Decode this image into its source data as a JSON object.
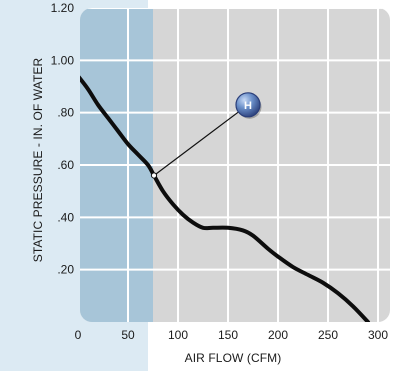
{
  "chart_data": {
    "type": "line",
    "title": "",
    "xlabel": "AIR FLOW (CFM)",
    "ylabel": "STATIC PRESSURE - IN. OF WATER",
    "xlim": [
      0,
      300
    ],
    "ylim": [
      0,
      1.2
    ],
    "x_ticks": [
      0,
      50,
      100,
      150,
      200,
      250,
      300
    ],
    "x_tick_labels": [
      "0",
      "50",
      "100",
      "150",
      "200",
      "250",
      "300"
    ],
    "y_ticks": [
      0.2,
      0.4,
      0.6,
      0.8,
      1.0,
      1.2
    ],
    "y_tick_labels": [
      ".20",
      ".40",
      ".60",
      ".80",
      "1.00",
      "1.20"
    ],
    "grid": true,
    "shaded_region": {
      "x_from": 0,
      "x_to": 75,
      "color": "#9fc2d8"
    },
    "colors": {
      "panel": "#d6d6d6",
      "grid": "#ffffff",
      "line": "#0d0d0d",
      "background_band": "#dceaf3",
      "marker_fill": "#6a8fc9",
      "marker_edge": "#2b3f7a"
    },
    "series": [
      {
        "name": "H",
        "x": [
          0,
          10,
          20,
          30,
          40,
          50,
          60,
          70,
          76,
          85,
          95,
          105,
          115,
          125,
          135,
          150,
          165,
          175,
          190,
          200,
          215,
          230,
          245,
          260,
          275,
          290
        ],
        "y": [
          0.94,
          0.89,
          0.83,
          0.78,
          0.73,
          0.68,
          0.64,
          0.6,
          0.56,
          0.5,
          0.45,
          0.41,
          0.38,
          0.36,
          0.36,
          0.36,
          0.35,
          0.33,
          0.28,
          0.25,
          0.21,
          0.18,
          0.15,
          0.11,
          0.06,
          0.0
        ]
      }
    ],
    "annotations": [
      {
        "label": "H",
        "series": "H",
        "point": [
          76,
          0.56
        ],
        "badge_at": [
          170,
          0.83
        ]
      }
    ]
  }
}
